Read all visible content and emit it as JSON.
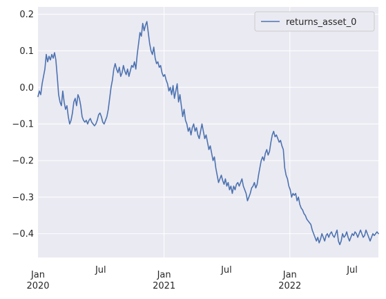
{
  "chart_data": {
    "type": "line",
    "title": "",
    "xlabel": "",
    "ylabel": "",
    "grid": true,
    "legend_position": "top-right",
    "xlim": [
      "2020-01-01",
      "2022-09-15"
    ],
    "ylim": [
      -0.465,
      0.22
    ],
    "colors": {
      "plot_background": "#eaeaf2",
      "grid": "#ffffff",
      "line": "#4c72b0",
      "legend_border": "#cccccc",
      "legend_background": "#eaeaf2"
    },
    "y_ticks": [
      {
        "value": 0.2,
        "label": "0.2"
      },
      {
        "value": 0.1,
        "label": "0.1"
      },
      {
        "value": 0.0,
        "label": "0.0"
      },
      {
        "value": -0.1,
        "label": "−0.1"
      },
      {
        "value": -0.2,
        "label": "−0.2"
      },
      {
        "value": -0.3,
        "label": "−0.3"
      },
      {
        "value": -0.4,
        "label": "−0.4"
      }
    ],
    "x_ticks": [
      {
        "date": "2020-01-01",
        "label": "Jan",
        "year": "2020"
      },
      {
        "date": "2020-07-01",
        "label": "Jul",
        "year": ""
      },
      {
        "date": "2021-01-01",
        "label": "Jan",
        "year": "2021"
      },
      {
        "date": "2021-07-01",
        "label": "Jul",
        "year": ""
      },
      {
        "date": "2022-01-01",
        "label": "Jan",
        "year": "2022"
      },
      {
        "date": "2022-07-01",
        "label": "Jul",
        "year": ""
      }
    ],
    "x_grid_dates": [
      "2021-01-01",
      "2022-01-01"
    ],
    "series": [
      {
        "name": "returns_asset_0",
        "points": [
          [
            "2020-01-01",
            -0.025
          ],
          [
            "2020-01-05",
            -0.01
          ],
          [
            "2020-01-09",
            -0.02
          ],
          [
            "2020-01-13",
            0.01
          ],
          [
            "2020-01-17",
            0.03
          ],
          [
            "2020-01-21",
            0.05
          ],
          [
            "2020-01-25",
            0.09
          ],
          [
            "2020-01-29",
            0.07
          ],
          [
            "2020-02-02",
            0.085
          ],
          [
            "2020-02-06",
            0.075
          ],
          [
            "2020-02-10",
            0.09
          ],
          [
            "2020-02-14",
            0.08
          ],
          [
            "2020-02-18",
            0.095
          ],
          [
            "2020-02-22",
            0.075
          ],
          [
            "2020-02-26",
            0.03
          ],
          [
            "2020-03-01",
            -0.02
          ],
          [
            "2020-03-05",
            -0.04
          ],
          [
            "2020-03-09",
            -0.05
          ],
          [
            "2020-03-13",
            -0.01
          ],
          [
            "2020-03-17",
            -0.04
          ],
          [
            "2020-03-21",
            -0.06
          ],
          [
            "2020-03-25",
            -0.05
          ],
          [
            "2020-03-29",
            -0.08
          ],
          [
            "2020-04-02",
            -0.1
          ],
          [
            "2020-04-06",
            -0.09
          ],
          [
            "2020-04-10",
            -0.07
          ],
          [
            "2020-04-14",
            -0.04
          ],
          [
            "2020-04-18",
            -0.03
          ],
          [
            "2020-04-22",
            -0.05
          ],
          [
            "2020-04-26",
            -0.02
          ],
          [
            "2020-04-30",
            -0.03
          ],
          [
            "2020-05-04",
            -0.05
          ],
          [
            "2020-05-08",
            -0.08
          ],
          [
            "2020-05-12",
            -0.09
          ],
          [
            "2020-05-16",
            -0.095
          ],
          [
            "2020-05-20",
            -0.09
          ],
          [
            "2020-05-24",
            -0.1
          ],
          [
            "2020-05-28",
            -0.09
          ],
          [
            "2020-06-01",
            -0.085
          ],
          [
            "2020-06-05",
            -0.095
          ],
          [
            "2020-06-09",
            -0.1
          ],
          [
            "2020-06-13",
            -0.105
          ],
          [
            "2020-06-17",
            -0.1
          ],
          [
            "2020-06-21",
            -0.09
          ],
          [
            "2020-06-25",
            -0.075
          ],
          [
            "2020-06-29",
            -0.07
          ],
          [
            "2020-07-03",
            -0.08
          ],
          [
            "2020-07-07",
            -0.095
          ],
          [
            "2020-07-11",
            -0.1
          ],
          [
            "2020-07-15",
            -0.09
          ],
          [
            "2020-07-19",
            -0.08
          ],
          [
            "2020-07-23",
            -0.06
          ],
          [
            "2020-07-27",
            -0.03
          ],
          [
            "2020-07-31",
            0.0
          ],
          [
            "2020-08-04",
            0.02
          ],
          [
            "2020-08-08",
            0.05
          ],
          [
            "2020-08-12",
            0.065
          ],
          [
            "2020-08-16",
            0.05
          ],
          [
            "2020-08-20",
            0.04
          ],
          [
            "2020-08-24",
            0.055
          ],
          [
            "2020-08-28",
            0.03
          ],
          [
            "2020-09-01",
            0.04
          ],
          [
            "2020-09-05",
            0.06
          ],
          [
            "2020-09-09",
            0.045
          ],
          [
            "2020-09-13",
            0.035
          ],
          [
            "2020-09-17",
            0.05
          ],
          [
            "2020-09-21",
            0.03
          ],
          [
            "2020-09-25",
            0.045
          ],
          [
            "2020-09-29",
            0.06
          ],
          [
            "2020-10-03",
            0.055
          ],
          [
            "2020-10-07",
            0.07
          ],
          [
            "2020-10-11",
            0.05
          ],
          [
            "2020-10-15",
            0.09
          ],
          [
            "2020-10-19",
            0.12
          ],
          [
            "2020-10-23",
            0.15
          ],
          [
            "2020-10-27",
            0.14
          ],
          [
            "2020-10-31",
            0.175
          ],
          [
            "2020-11-04",
            0.155
          ],
          [
            "2020-11-08",
            0.17
          ],
          [
            "2020-11-12",
            0.18
          ],
          [
            "2020-11-16",
            0.15
          ],
          [
            "2020-11-20",
            0.12
          ],
          [
            "2020-11-24",
            0.1
          ],
          [
            "2020-11-28",
            0.09
          ],
          [
            "2020-12-02",
            0.11
          ],
          [
            "2020-12-06",
            0.08
          ],
          [
            "2020-12-10",
            0.065
          ],
          [
            "2020-12-14",
            0.07
          ],
          [
            "2020-12-18",
            0.055
          ],
          [
            "2020-12-22",
            0.06
          ],
          [
            "2020-12-26",
            0.04
          ],
          [
            "2020-12-30",
            0.03
          ],
          [
            "2021-01-03",
            0.035
          ],
          [
            "2021-01-07",
            0.02
          ],
          [
            "2021-01-11",
            0.01
          ],
          [
            "2021-01-15",
            -0.01
          ],
          [
            "2021-01-19",
            0.0
          ],
          [
            "2021-01-23",
            -0.02
          ],
          [
            "2021-01-27",
            0.005
          ],
          [
            "2021-01-31",
            -0.03
          ],
          [
            "2021-02-04",
            -0.01
          ],
          [
            "2021-02-08",
            0.01
          ],
          [
            "2021-02-12",
            -0.04
          ],
          [
            "2021-02-16",
            -0.02
          ],
          [
            "2021-02-20",
            -0.05
          ],
          [
            "2021-02-24",
            -0.08
          ],
          [
            "2021-02-28",
            -0.06
          ],
          [
            "2021-03-04",
            -0.09
          ],
          [
            "2021-03-08",
            -0.1
          ],
          [
            "2021-03-12",
            -0.12
          ],
          [
            "2021-03-16",
            -0.11
          ],
          [
            "2021-03-20",
            -0.13
          ],
          [
            "2021-03-24",
            -0.11
          ],
          [
            "2021-03-28",
            -0.1
          ],
          [
            "2021-04-01",
            -0.12
          ],
          [
            "2021-04-05",
            -0.11
          ],
          [
            "2021-04-09",
            -0.13
          ],
          [
            "2021-04-13",
            -0.14
          ],
          [
            "2021-04-17",
            -0.12
          ],
          [
            "2021-04-21",
            -0.1
          ],
          [
            "2021-04-25",
            -0.12
          ],
          [
            "2021-04-29",
            -0.14
          ],
          [
            "2021-05-03",
            -0.13
          ],
          [
            "2021-05-07",
            -0.15
          ],
          [
            "2021-05-11",
            -0.17
          ],
          [
            "2021-05-15",
            -0.16
          ],
          [
            "2021-05-19",
            -0.18
          ],
          [
            "2021-05-23",
            -0.2
          ],
          [
            "2021-05-27",
            -0.19
          ],
          [
            "2021-05-31",
            -0.22
          ],
          [
            "2021-06-04",
            -0.24
          ],
          [
            "2021-06-08",
            -0.26
          ],
          [
            "2021-06-12",
            -0.25
          ],
          [
            "2021-06-16",
            -0.24
          ],
          [
            "2021-06-20",
            -0.255
          ],
          [
            "2021-06-24",
            -0.265
          ],
          [
            "2021-06-28",
            -0.25
          ],
          [
            "2021-07-02",
            -0.27
          ],
          [
            "2021-07-06",
            -0.26
          ],
          [
            "2021-07-10",
            -0.28
          ],
          [
            "2021-07-14",
            -0.27
          ],
          [
            "2021-07-18",
            -0.29
          ],
          [
            "2021-07-22",
            -0.27
          ],
          [
            "2021-07-26",
            -0.28
          ],
          [
            "2021-07-30",
            -0.265
          ],
          [
            "2021-08-03",
            -0.26
          ],
          [
            "2021-08-07",
            -0.27
          ],
          [
            "2021-08-11",
            -0.26
          ],
          [
            "2021-08-15",
            -0.25
          ],
          [
            "2021-08-19",
            -0.27
          ],
          [
            "2021-08-23",
            -0.28
          ],
          [
            "2021-08-27",
            -0.29
          ],
          [
            "2021-08-31",
            -0.31
          ],
          [
            "2021-09-04",
            -0.3
          ],
          [
            "2021-09-08",
            -0.29
          ],
          [
            "2021-09-12",
            -0.275
          ],
          [
            "2021-09-16",
            -0.27
          ],
          [
            "2021-09-20",
            -0.26
          ],
          [
            "2021-09-24",
            -0.275
          ],
          [
            "2021-09-28",
            -0.265
          ],
          [
            "2021-10-02",
            -0.24
          ],
          [
            "2021-10-06",
            -0.22
          ],
          [
            "2021-10-10",
            -0.2
          ],
          [
            "2021-10-14",
            -0.19
          ],
          [
            "2021-10-18",
            -0.2
          ],
          [
            "2021-10-22",
            -0.18
          ],
          [
            "2021-10-26",
            -0.17
          ],
          [
            "2021-10-30",
            -0.185
          ],
          [
            "2021-11-03",
            -0.175
          ],
          [
            "2021-11-07",
            -0.15
          ],
          [
            "2021-11-11",
            -0.13
          ],
          [
            "2021-11-15",
            -0.12
          ],
          [
            "2021-11-19",
            -0.135
          ],
          [
            "2021-11-23",
            -0.13
          ],
          [
            "2021-11-27",
            -0.14
          ],
          [
            "2021-12-01",
            -0.15
          ],
          [
            "2021-12-05",
            -0.145
          ],
          [
            "2021-12-09",
            -0.16
          ],
          [
            "2021-12-13",
            -0.17
          ],
          [
            "2021-12-17",
            -0.22
          ],
          [
            "2021-12-21",
            -0.24
          ],
          [
            "2021-12-25",
            -0.25
          ],
          [
            "2021-12-29",
            -0.27
          ],
          [
            "2022-01-02",
            -0.28
          ],
          [
            "2022-01-06",
            -0.3
          ],
          [
            "2022-01-10",
            -0.29
          ],
          [
            "2022-01-14",
            -0.295
          ],
          [
            "2022-01-18",
            -0.29
          ],
          [
            "2022-01-22",
            -0.31
          ],
          [
            "2022-01-26",
            -0.3
          ],
          [
            "2022-01-30",
            -0.32
          ],
          [
            "2022-02-03",
            -0.33
          ],
          [
            "2022-02-07",
            -0.335
          ],
          [
            "2022-02-11",
            -0.345
          ],
          [
            "2022-02-15",
            -0.35
          ],
          [
            "2022-02-19",
            -0.36
          ],
          [
            "2022-02-23",
            -0.365
          ],
          [
            "2022-02-27",
            -0.37
          ],
          [
            "2022-03-03",
            -0.375
          ],
          [
            "2022-03-07",
            -0.39
          ],
          [
            "2022-03-11",
            -0.4
          ],
          [
            "2022-03-15",
            -0.41
          ],
          [
            "2022-03-19",
            -0.42
          ],
          [
            "2022-03-23",
            -0.41
          ],
          [
            "2022-03-27",
            -0.425
          ],
          [
            "2022-03-31",
            -0.415
          ],
          [
            "2022-04-04",
            -0.4
          ],
          [
            "2022-04-08",
            -0.41
          ],
          [
            "2022-04-12",
            -0.42
          ],
          [
            "2022-04-16",
            -0.405
          ],
          [
            "2022-04-20",
            -0.4
          ],
          [
            "2022-04-24",
            -0.41
          ],
          [
            "2022-04-28",
            -0.4
          ],
          [
            "2022-05-02",
            -0.395
          ],
          [
            "2022-05-06",
            -0.405
          ],
          [
            "2022-05-10",
            -0.41
          ],
          [
            "2022-05-14",
            -0.4
          ],
          [
            "2022-05-18",
            -0.39
          ],
          [
            "2022-05-22",
            -0.42
          ],
          [
            "2022-05-26",
            -0.43
          ],
          [
            "2022-05-30",
            -0.42
          ],
          [
            "2022-06-03",
            -0.4
          ],
          [
            "2022-06-07",
            -0.41
          ],
          [
            "2022-06-11",
            -0.405
          ],
          [
            "2022-06-15",
            -0.395
          ],
          [
            "2022-06-19",
            -0.41
          ],
          [
            "2022-06-23",
            -0.42
          ],
          [
            "2022-06-27",
            -0.41
          ],
          [
            "2022-07-01",
            -0.4
          ],
          [
            "2022-07-05",
            -0.405
          ],
          [
            "2022-07-09",
            -0.395
          ],
          [
            "2022-07-13",
            -0.4
          ],
          [
            "2022-07-17",
            -0.41
          ],
          [
            "2022-07-21",
            -0.4
          ],
          [
            "2022-07-25",
            -0.39
          ],
          [
            "2022-07-29",
            -0.4
          ],
          [
            "2022-08-02",
            -0.41
          ],
          [
            "2022-08-06",
            -0.405
          ],
          [
            "2022-08-10",
            -0.39
          ],
          [
            "2022-08-14",
            -0.4
          ],
          [
            "2022-08-18",
            -0.41
          ],
          [
            "2022-08-22",
            -0.42
          ],
          [
            "2022-08-26",
            -0.41
          ],
          [
            "2022-08-30",
            -0.4
          ],
          [
            "2022-09-03",
            -0.405
          ],
          [
            "2022-09-07",
            -0.4
          ],
          [
            "2022-09-11",
            -0.395
          ],
          [
            "2022-09-15",
            -0.4
          ]
        ]
      }
    ]
  }
}
